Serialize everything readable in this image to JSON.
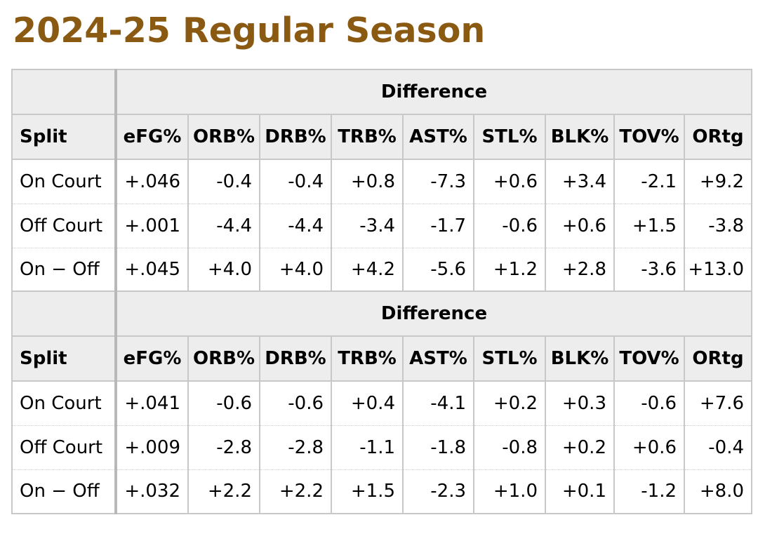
{
  "title": "2024-25 Regular Season",
  "tables": [
    {
      "group_label": "Difference",
      "columns": [
        "Split",
        "eFG%",
        "ORB%",
        "DRB%",
        "TRB%",
        "AST%",
        "STL%",
        "BLK%",
        "TOV%",
        "ORtg"
      ],
      "rows": [
        [
          "On Court",
          "+.046",
          "-0.4",
          "-0.4",
          "+0.8",
          "-7.3",
          "+0.6",
          "+3.4",
          "-2.1",
          "+9.2"
        ],
        [
          "Off Court",
          "+.001",
          "-4.4",
          "-4.4",
          "-3.4",
          "-1.7",
          "-0.6",
          "+0.6",
          "+1.5",
          "-3.8"
        ],
        [
          "On − Off",
          "+.045",
          "+4.0",
          "+4.0",
          "+4.2",
          "-5.6",
          "+1.2",
          "+2.8",
          "-3.6",
          "+13.0"
        ]
      ]
    },
    {
      "group_label": "Difference",
      "columns": [
        "Split",
        "eFG%",
        "ORB%",
        "DRB%",
        "TRB%",
        "AST%",
        "STL%",
        "BLK%",
        "TOV%",
        "ORtg"
      ],
      "rows": [
        [
          "On Court",
          "+.041",
          "-0.6",
          "-0.6",
          "+0.4",
          "-4.1",
          "+0.2",
          "+0.3",
          "-0.6",
          "+7.6"
        ],
        [
          "Off Court",
          "+.009",
          "-2.8",
          "-2.8",
          "-1.1",
          "-1.8",
          "-0.8",
          "+0.2",
          "+0.6",
          "-0.4"
        ],
        [
          "On − Off",
          "+.032",
          "+2.2",
          "+2.2",
          "+1.5",
          "-2.3",
          "+1.0",
          "+0.1",
          "-1.2",
          "+8.0"
        ]
      ]
    }
  ]
}
